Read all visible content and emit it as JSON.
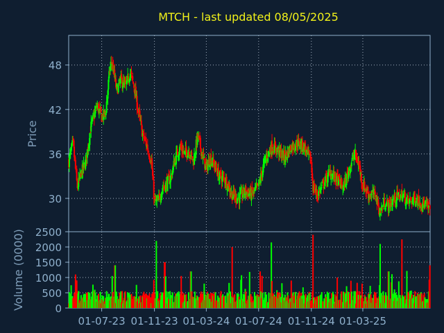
{
  "chart_data": [
    {
      "type": "candlestick",
      "title": "MTCH - last updated 08/05/2025",
      "xlabel": "",
      "ylabel": "Price",
      "ylim": [
        25.5,
        52
      ],
      "yticks": [
        30,
        36,
        42,
        48
      ],
      "xlim": [
        "2023-04-15",
        "2025-08-05"
      ],
      "xticks": [
        {
          "date": "2023-07-01",
          "label": "01-07-23"
        },
        {
          "date": "2023-11-01",
          "label": "01-11-23"
        },
        {
          "date": "2024-03-01",
          "label": "01-03-24"
        },
        {
          "date": "2024-07-01",
          "label": "01-07-24"
        },
        {
          "date": "2024-11-01",
          "label": "01-11-24"
        },
        {
          "date": "2025-03-01",
          "label": "01-03-25"
        }
      ],
      "grid": true,
      "colors": {
        "up": "#00ff00",
        "down": "#ff0000"
      },
      "close_series": [
        [
          "2023-04-15",
          35.0
        ],
        [
          "2023-04-25",
          37.5
        ],
        [
          "2023-05-05",
          31.5
        ],
        [
          "2023-05-15",
          33.5
        ],
        [
          "2023-05-25",
          35.0
        ],
        [
          "2023-06-05",
          39.5
        ],
        [
          "2023-06-20",
          42.5
        ],
        [
          "2023-07-01",
          41.0
        ],
        [
          "2023-07-10",
          41.5
        ],
        [
          "2023-07-20",
          47.5
        ],
        [
          "2023-07-25",
          48.5
        ],
        [
          "2023-08-05",
          44.5
        ],
        [
          "2023-08-15",
          46.0
        ],
        [
          "2023-08-25",
          45.0
        ],
        [
          "2023-09-05",
          47.0
        ],
        [
          "2023-09-15",
          45.0
        ],
        [
          "2023-09-25",
          41.5
        ],
        [
          "2023-10-05",
          38.5
        ],
        [
          "2023-10-15",
          37.0
        ],
        [
          "2023-10-25",
          35.0
        ],
        [
          "2023-11-01",
          29.5
        ],
        [
          "2023-11-10",
          29.5
        ],
        [
          "2023-11-20",
          31.5
        ],
        [
          "2023-11-30",
          32.0
        ],
        [
          "2023-12-10",
          33.0
        ],
        [
          "2023-12-20",
          35.5
        ],
        [
          "2023-12-31",
          37.0
        ],
        [
          "2024-01-10",
          36.0
        ],
        [
          "2024-01-20",
          36.5
        ],
        [
          "2024-01-31",
          35.0
        ],
        [
          "2024-02-10",
          38.5
        ],
        [
          "2024-02-20",
          36.0
        ],
        [
          "2024-03-01",
          34.0
        ],
        [
          "2024-03-10",
          35.5
        ],
        [
          "2024-03-20",
          34.5
        ],
        [
          "2024-03-31",
          33.0
        ],
        [
          "2024-04-15",
          32.5
        ],
        [
          "2024-04-30",
          30.5
        ],
        [
          "2024-05-15",
          30.0
        ],
        [
          "2024-05-31",
          31.0
        ],
        [
          "2024-06-15",
          30.5
        ],
        [
          "2024-06-30",
          31.5
        ],
        [
          "2024-07-15",
          35.0
        ],
        [
          "2024-07-31",
          37.0
        ],
        [
          "2024-08-15",
          36.5
        ],
        [
          "2024-08-31",
          35.5
        ],
        [
          "2024-09-15",
          37.0
        ],
        [
          "2024-09-30",
          37.5
        ],
        [
          "2024-10-15",
          37.0
        ],
        [
          "2024-10-31",
          35.0
        ],
        [
          "2024-11-05",
          31.5
        ],
        [
          "2024-11-15",
          30.5
        ],
        [
          "2024-11-30",
          32.0
        ],
        [
          "2024-12-15",
          33.5
        ],
        [
          "2024-12-31",
          32.5
        ],
        [
          "2025-01-15",
          31.5
        ],
        [
          "2025-01-31",
          34.5
        ],
        [
          "2025-02-10",
          36.0
        ],
        [
          "2025-02-20",
          34.5
        ],
        [
          "2025-02-28",
          32.0
        ],
        [
          "2025-03-15",
          30.5
        ],
        [
          "2025-03-31",
          30.5
        ],
        [
          "2025-04-10",
          28.0
        ],
        [
          "2025-04-20",
          29.5
        ],
        [
          "2025-04-30",
          29.0
        ],
        [
          "2025-05-15",
          30.0
        ],
        [
          "2025-05-31",
          30.5
        ],
        [
          "2025-06-15",
          29.5
        ],
        [
          "2025-07-01",
          30.0
        ],
        [
          "2025-07-15",
          29.5
        ],
        [
          "2025-08-05",
          28.5
        ]
      ]
    },
    {
      "type": "bar",
      "title": "",
      "xlabel": "",
      "ylabel": "Volume (0000)",
      "ylim": [
        0,
        2500
      ],
      "yticks": [
        0,
        500,
        1000,
        1500,
        2000,
        2500
      ],
      "grid": true,
      "volume_baseline": 350,
      "volume_spikes": [
        [
          "2023-05-01",
          1100
        ],
        [
          "2023-06-15",
          600
        ],
        [
          "2023-07-25",
          1050
        ],
        [
          "2023-08-01",
          1400
        ],
        [
          "2023-11-05",
          2200
        ],
        [
          "2023-11-25",
          1500
        ],
        [
          "2024-01-25",
          1200
        ],
        [
          "2024-02-25",
          800
        ],
        [
          "2024-04-30",
          2000
        ],
        [
          "2024-07-05",
          1200
        ],
        [
          "2024-07-31",
          2150
        ],
        [
          "2024-09-15",
          900
        ],
        [
          "2024-11-05",
          2400
        ],
        [
          "2024-12-31",
          1000
        ],
        [
          "2025-02-28",
          800
        ],
        [
          "2025-04-10",
          2100
        ],
        [
          "2025-04-30",
          1200
        ],
        [
          "2025-05-31",
          2250
        ],
        [
          "2025-08-05",
          1400
        ]
      ]
    }
  ]
}
